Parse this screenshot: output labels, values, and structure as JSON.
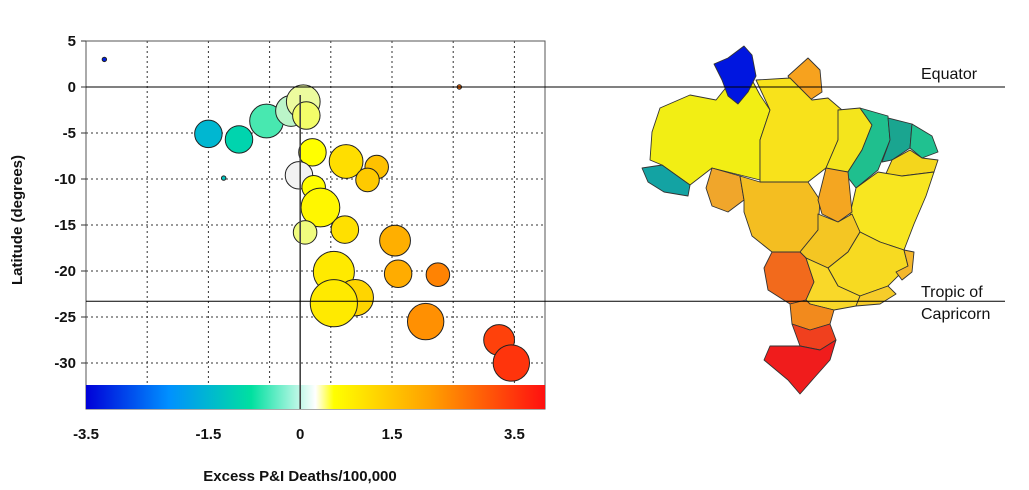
{
  "chart_data": {
    "type": "scatter",
    "title": "",
    "xlabel": "Excess P&I Deaths/100,000",
    "ylabel": "Latitude (degrees)",
    "xlim": [
      -3.5,
      4.0
    ],
    "ylim": [
      -35,
      5
    ],
    "x_ticks": [
      "-3.5",
      "-1.5",
      "0",
      "1.5",
      "3.5"
    ],
    "x_tick_values": [
      -3.5,
      -1.5,
      0,
      1.5,
      3.5
    ],
    "y_ticks": [
      "5",
      "0",
      "-5",
      "-10",
      "-15",
      "-20",
      "-25",
      "-30"
    ],
    "y_tick_values": [
      5,
      0,
      -5,
      -10,
      -15,
      -20,
      -25,
      -30
    ],
    "grid": "dotted",
    "colorbar_range": [
      -3.5,
      4.0
    ],
    "colorbar_stops": [
      "#0000d8",
      "#0090ff",
      "#00e0a0",
      "#ffffff",
      "#ffff00",
      "#ffa000",
      "#ff1010"
    ],
    "reference_lines": [
      {
        "label": "Equator",
        "y": 0
      },
      {
        "label_lines": [
          "Tropic of",
          "Capricorn"
        ],
        "y": -23.4
      }
    ],
    "vertical_reference_x": 0,
    "points": [
      {
        "x": -3.2,
        "y": 3.0,
        "size": 1
      },
      {
        "x": 2.6,
        "y": 0.0,
        "size": 1
      },
      {
        "x": -1.5,
        "y": -5.1,
        "size": 3
      },
      {
        "x": -1.0,
        "y": -5.7,
        "size": 3
      },
      {
        "x": -0.55,
        "y": -3.7,
        "size": 5
      },
      {
        "x": -0.15,
        "y": -2.6,
        "size": 4
      },
      {
        "x": 0.05,
        "y": -1.6,
        "size": 5
      },
      {
        "x": 0.1,
        "y": -3.1,
        "size": 3
      },
      {
        "x": -1.25,
        "y": -9.9,
        "size": 1
      },
      {
        "x": 0.2,
        "y": -7.1,
        "size": 3
      },
      {
        "x": 0.75,
        "y": -8.1,
        "size": 5
      },
      {
        "x": 1.25,
        "y": -8.7,
        "size": 2
      },
      {
        "x": 1.1,
        "y": -10.1,
        "size": 2
      },
      {
        "x": -0.02,
        "y": -9.6,
        "size": 3
      },
      {
        "x": 0.22,
        "y": -10.9,
        "size": 2
      },
      {
        "x": 0.33,
        "y": -13.1,
        "size": 7
      },
      {
        "x": 0.73,
        "y": -15.5,
        "size": 3
      },
      {
        "x": 0.08,
        "y": -15.8,
        "size": 2
      },
      {
        "x": 1.55,
        "y": -16.7,
        "size": 4
      },
      {
        "x": 0.55,
        "y": -20.1,
        "size": 8
      },
      {
        "x": 1.6,
        "y": -20.3,
        "size": 3
      },
      {
        "x": 2.25,
        "y": -20.4,
        "size": 2
      },
      {
        "x": 0.9,
        "y": -22.9,
        "size": 6
      },
      {
        "x": 0.55,
        "y": -23.5,
        "size": 11
      },
      {
        "x": 2.05,
        "y": -25.5,
        "size": 6
      },
      {
        "x": 3.25,
        "y": -27.5,
        "size": 4
      },
      {
        "x": 3.45,
        "y": -30.0,
        "size": 6
      }
    ]
  },
  "map": {
    "name": "Brazil states",
    "colors": {
      "north": "#f2ee14",
      "roraima": "#f4d90a",
      "amapa": "#f7a21e",
      "amazonas_east": "#f6e415",
      "para": "#f8e21b",
      "tocantins": "#f4a621",
      "maranhao_west": "#f4e51c",
      "piaui": "#1fbf8e",
      "ceara": "#1aa590",
      "rgn": "#20c190",
      "paraiba": "#3fd083",
      "pernambuco": "#f4d61c",
      "bahia": "#f8e620",
      "acre": "#13a3a3",
      "rondonia": "#f0a62b",
      "mato_grosso": "#f4be21",
      "goias": "#f4c623",
      "df": "#f4b72a",
      "minas": "#f7da21",
      "ms": "#f26a1c",
      "sao_paulo": "#f9d829",
      "rio": "#f6cc2a",
      "es": "#f5b72b",
      "parana": "#f28a1d",
      "sc": "#f0401e",
      "rs": "#f01c1c",
      "cabeca": "#0016e0"
    }
  }
}
